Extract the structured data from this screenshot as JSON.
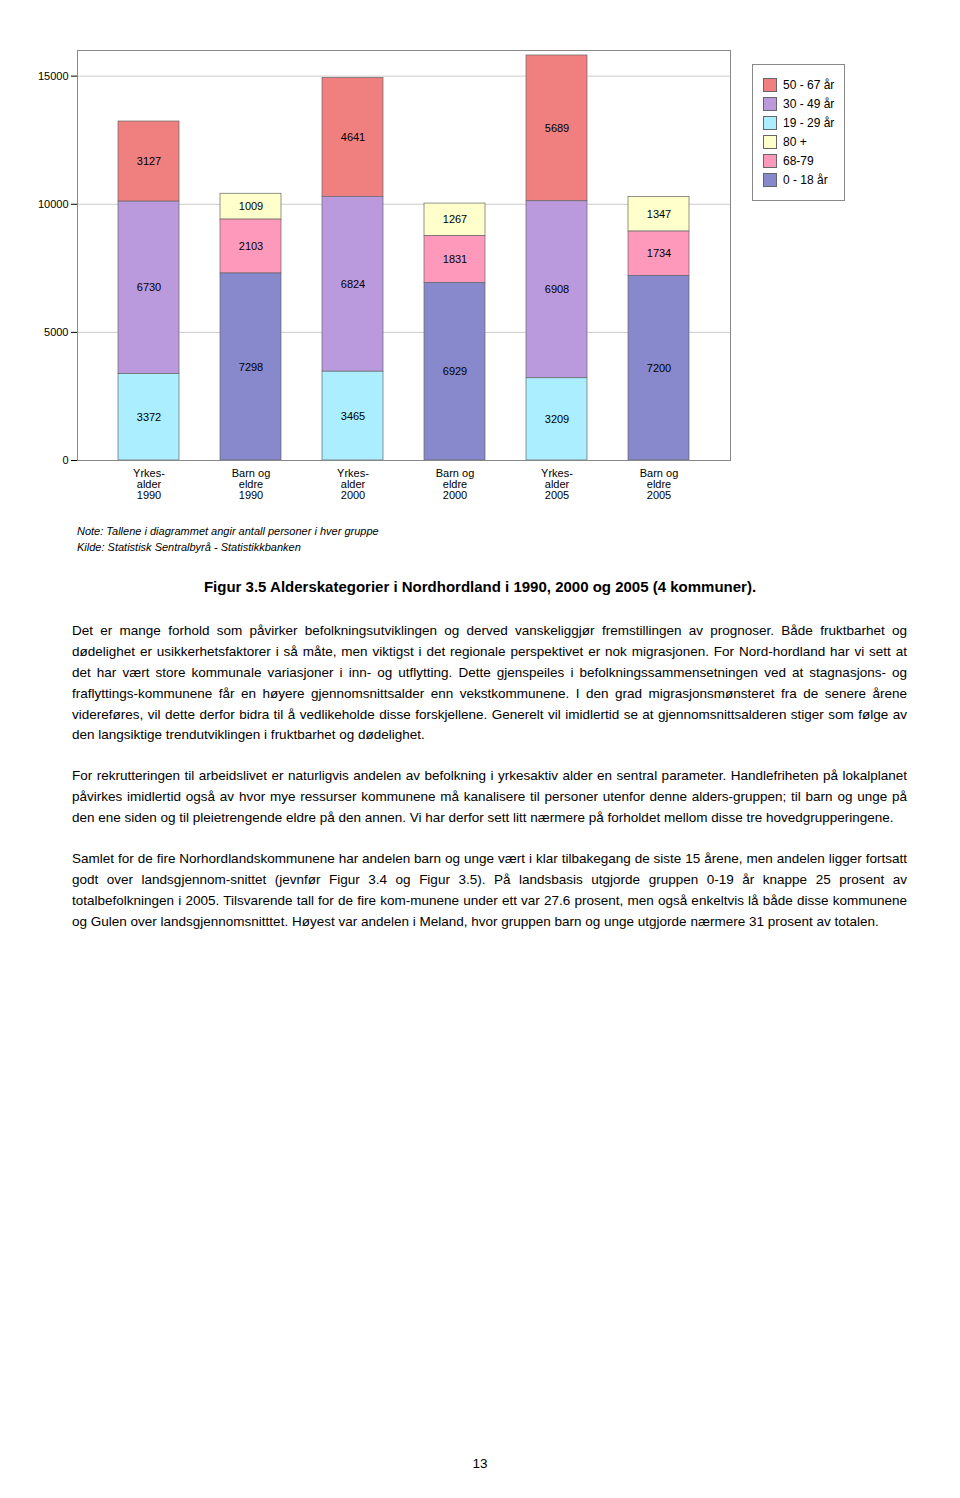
{
  "chart_data": {
    "type": "bar",
    "stacked": true,
    "title": "Figur 3.5 Alderskategorier i Nordhordland i 1990, 2000 og 2005 (4 kommuner).",
    "categories": [
      "Yrkes-\nalder\n1990",
      "Barn og\neldre\n1990",
      "Yrkes-\nalder\n2000",
      "Barn og\neldre\n2000",
      "Yrkes-\nalder\n2005",
      "Barn og\neldre\n2005"
    ],
    "series": [
      {
        "name": "50 - 67 år",
        "color": "#f08080",
        "values": [
          3127,
          null,
          4641,
          null,
          5689,
          null
        ]
      },
      {
        "name": "30 - 49 år",
        "color": "#bb99dd",
        "values": [
          6730,
          null,
          6824,
          null,
          6908,
          null
        ]
      },
      {
        "name": "19 - 29 år",
        "color": "#aaeeff",
        "values": [
          3372,
          null,
          3465,
          null,
          3209,
          null
        ]
      },
      {
        "name": "80 +",
        "color": "#ffffcc",
        "values": [
          null,
          1009,
          null,
          1267,
          null,
          1347
        ]
      },
      {
        "name": "68-79",
        "color": "#ff99bb",
        "values": [
          null,
          2103,
          null,
          1831,
          null,
          1734
        ]
      },
      {
        "name": "0 - 18 år",
        "color": "#8888cc",
        "values": [
          null,
          7298,
          null,
          6929,
          null,
          7200
        ]
      }
    ],
    "ylim": [
      0,
      16000
    ],
    "yticks": [
      0,
      5000,
      10000,
      15000
    ],
    "grid": true,
    "legend": "right",
    "data_labels": true,
    "annotations": [
      "Note: Tallene i diagrammet angir antall personer i hver gruppe",
      "Kilde: Statistisk Sentralbyrå - Statistikkbanken"
    ]
  },
  "paragraphs": [
    "Det er mange forhold som påvirker befolkningsutviklingen og derved vanskeliggjør fremstillingen av prognoser. Både fruktbarhet og dødelighet er usikkerhetsfaktorer i så måte, men viktigst i det regionale perspektivet er nok migrasjonen. For Nord-hordland har vi sett at det har vært store kommunale variasjoner i inn- og utflytting. Dette gjenspeiles i befolkningssammensetningen ved at stagnasjons- og fraflyttings-kommunene får en høyere gjennomsnittsalder enn vekstkommunene. I den grad migrasjonsmønsteret fra de senere årene videreføres, vil dette derfor bidra til å vedlikeholde disse forskjellene. Generelt vil imidlertid se at gjennomsnittsalderen stiger som følge av den langsiktige trendutviklingen i fruktbarhet og dødelighet.",
    "For rekrutteringen til arbeidslivet er naturligvis andelen av befolkning i yrkesaktiv alder en sentral parameter. Handlefriheten på lokalplanet påvirkes imidlertid også av hvor mye ressurser kommunene må kanalisere til personer utenfor denne alders-gruppen; til barn og unge på den ene siden og til pleietrengende eldre på den annen. Vi har derfor sett litt nærmere på forholdet mellom disse tre hovedgrupperingene.",
    "Samlet for de fire Norhordlandskommunene har andelen barn og unge vært i klar tilbakegang de siste 15 årene, men andelen ligger fortsatt godt over landsgjennom-snittet (jevnfør Figur 3.4 og Figur 3.5). På landsbasis utgjorde gruppen 0-19 år knappe 25 prosent av totalbefolkningen i 2005. Tilsvarende tall for de fire kom-munene under ett var 27.6 prosent, men også enkeltvis lå både disse kommunene og Gulen over landsgjennomsnitttet. Høyest var andelen i Meland, hvor gruppen barn og unge utgjorde nærmere 31 prosent av totalen."
  ],
  "page_number": "13"
}
